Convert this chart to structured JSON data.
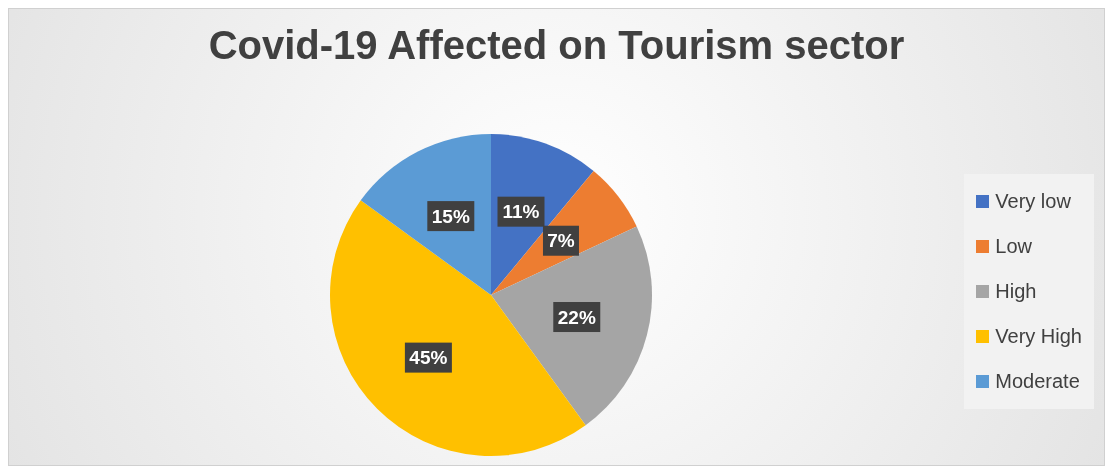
{
  "chart_data": {
    "type": "pie",
    "title": "Covid-19 Affected on Tourism sector",
    "categories": [
      "Very low",
      "Low",
      "High",
      "Very High",
      "Moderate"
    ],
    "values": [
      11,
      7,
      22,
      45,
      15
    ],
    "colors": [
      "#4472c4",
      "#ed7d31",
      "#a5a5a5",
      "#ffc000",
      "#5b9bd5"
    ],
    "value_labels": [
      "11%",
      "7%",
      "22%",
      "45%",
      "15%"
    ],
    "legend": "right"
  }
}
